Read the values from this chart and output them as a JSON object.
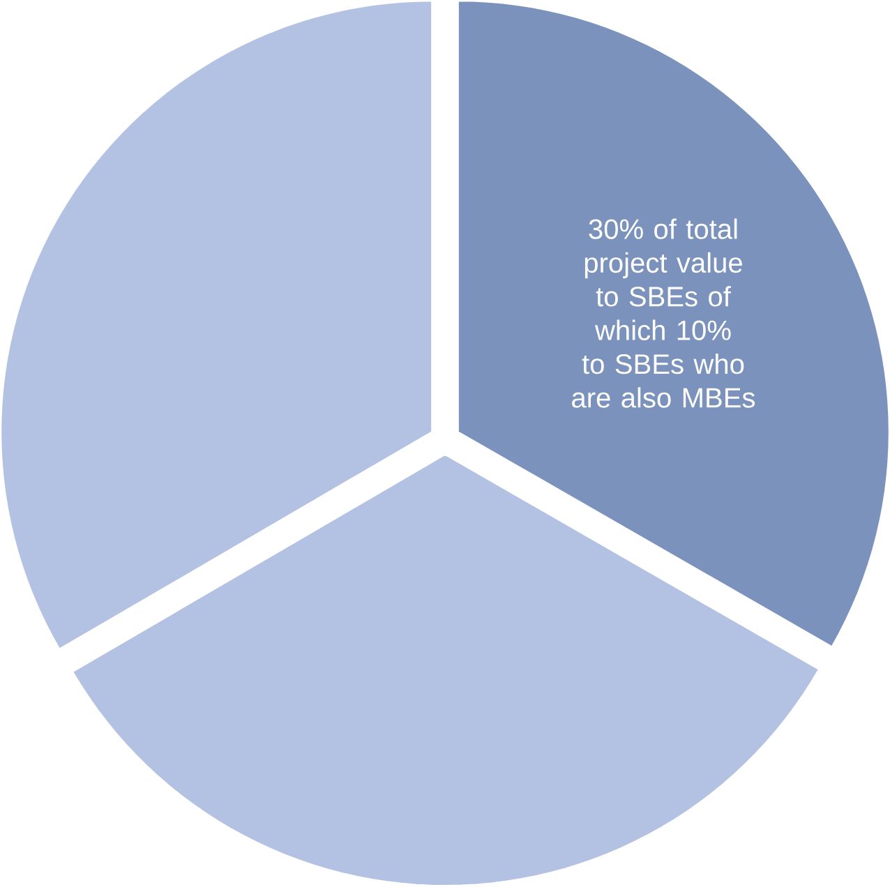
{
  "chart_data": {
    "type": "pie",
    "categories": [
      "30% of total project value to SBEs of which 10% to SBEs who are also MBEs",
      null,
      null
    ],
    "values": [
      33.3,
      33.3,
      33.4
    ],
    "colors": [
      "#7a92bc",
      "#b3c2e2",
      "#b3c2e2"
    ]
  }
}
